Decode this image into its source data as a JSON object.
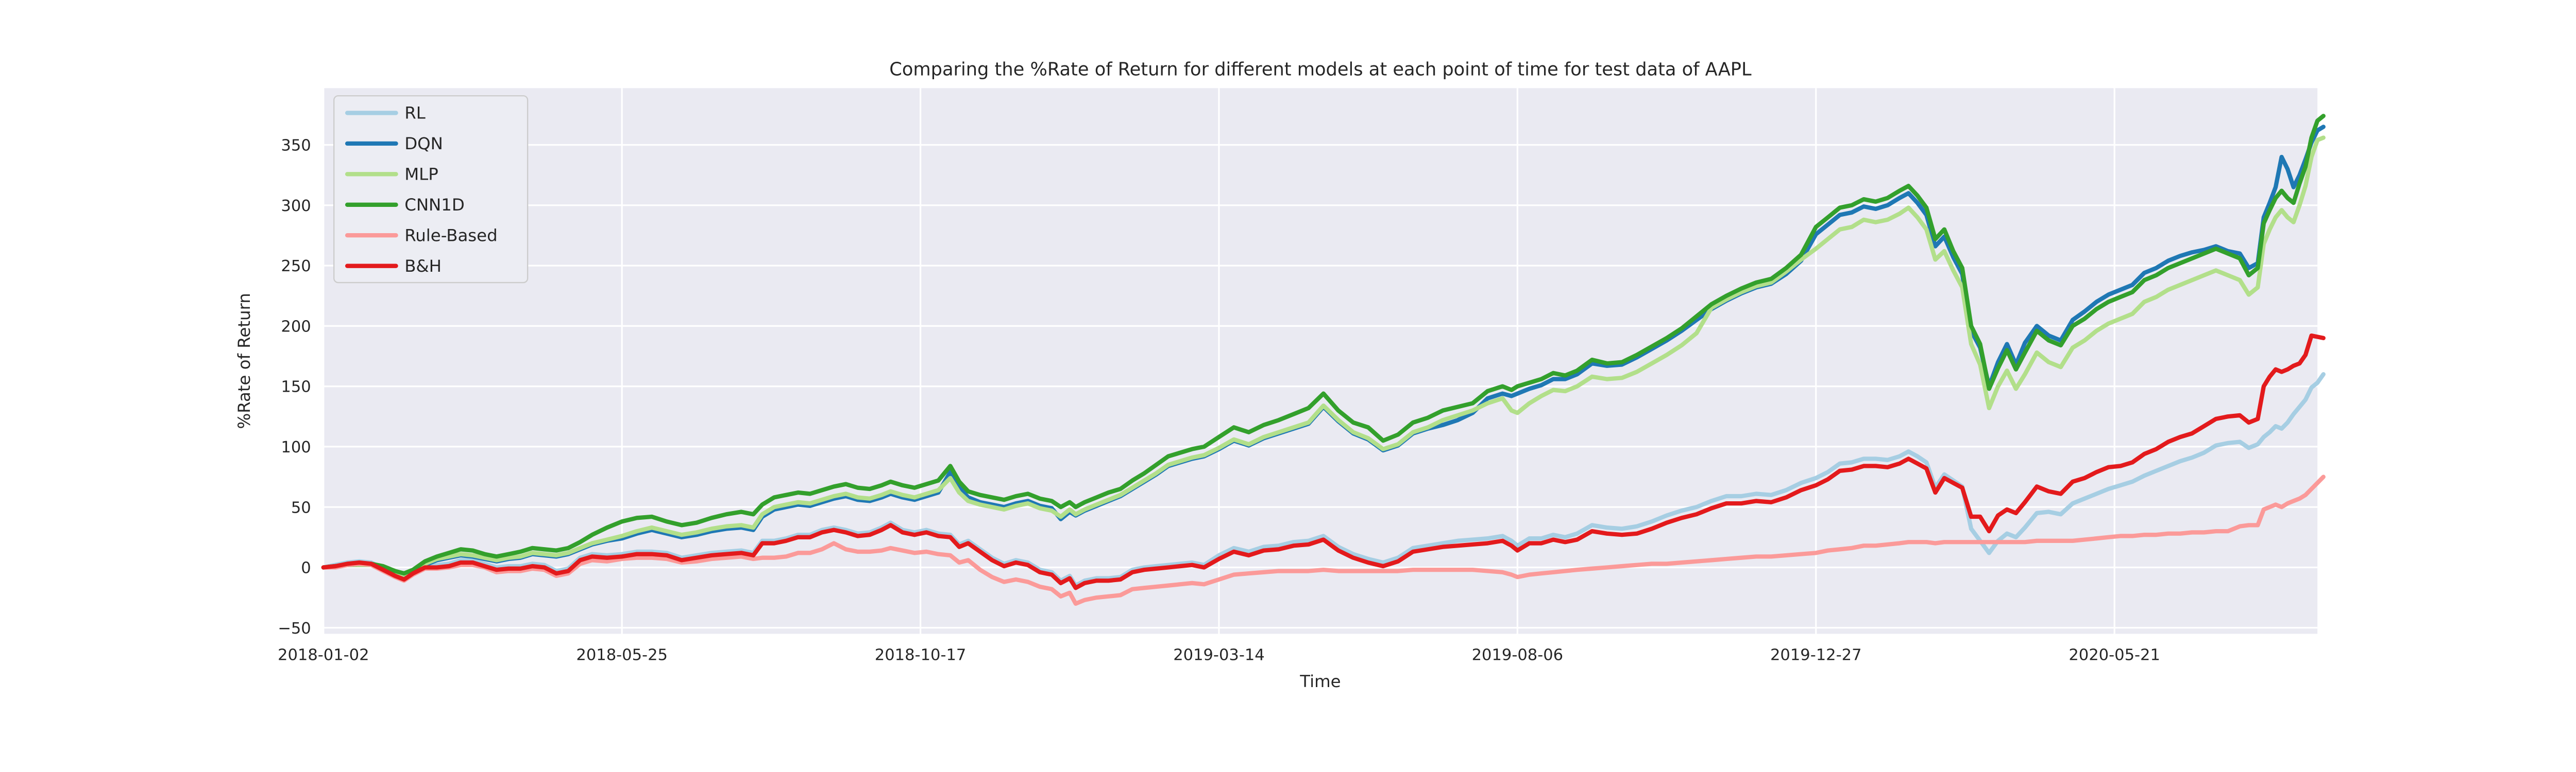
{
  "title": "Comparing the %Rate of Return for different models at each point of time for test data of AAPL",
  "axes": {
    "xlabel": "Time",
    "ylabel": "%Rate of Return",
    "x_tick_labels": [
      "2018-01-02",
      "2018-05-25",
      "2018-10-17",
      "2019-03-14",
      "2019-08-06",
      "2019-12-27",
      "2020-05-21"
    ],
    "x_tick_index": [
      0,
      100,
      200,
      300,
      400,
      500,
      600
    ],
    "y_ticks": [
      -50,
      0,
      50,
      100,
      150,
      200,
      250,
      300,
      350
    ],
    "xlim": [
      0,
      668
    ],
    "ylim": [
      -55,
      397
    ],
    "grid": true,
    "plot_bg": "#eaeaf2",
    "grid_color": "#ffffff",
    "text_color": "#262626"
  },
  "legend": {
    "position": "upper left",
    "bg": "#ecedf3",
    "border": "#cccccc",
    "entries": [
      {
        "label": "RL",
        "color": "#a6cee3"
      },
      {
        "label": "DQN",
        "color": "#1f78b4"
      },
      {
        "label": "MLP",
        "color": "#b2df8a"
      },
      {
        "label": "CNN1D",
        "color": "#33a02c"
      },
      {
        "label": "Rule-Based",
        "color": "#fb9a99"
      },
      {
        "label": "B&H",
        "color": "#e31a1c"
      }
    ]
  },
  "chart_data": {
    "type": "line",
    "title": "Comparing the %Rate of Return for different models at each point of time for test data of AAPL",
    "xlabel": "Time",
    "ylabel": "%Rate of Return",
    "x_unit": "trading-day index from 2018-01-02 (ticks every 100 sessions, data ends 2020-08-28)",
    "xlim": [
      0,
      668
    ],
    "ylim": [
      -55,
      397
    ],
    "legend_position": "upper left",
    "x": [
      0,
      4,
      8,
      12,
      16,
      20,
      24,
      27,
      30,
      34,
      38,
      42,
      46,
      50,
      54,
      58,
      62,
      66,
      70,
      74,
      78,
      82,
      86,
      90,
      95,
      100,
      105,
      110,
      115,
      120,
      125,
      130,
      135,
      140,
      144,
      147,
      151,
      155,
      159,
      163,
      167,
      171,
      175,
      179,
      183,
      187,
      190,
      194,
      198,
      202,
      206,
      210,
      213,
      216,
      220,
      224,
      228,
      232,
      236,
      240,
      244,
      247,
      250,
      252,
      255,
      259,
      263,
      267,
      271,
      275,
      279,
      283,
      287,
      291,
      295,
      300,
      305,
      310,
      315,
      320,
      325,
      330,
      335,
      340,
      345,
      350,
      355,
      360,
      365,
      370,
      375,
      380,
      385,
      390,
      395,
      398,
      400,
      404,
      408,
      412,
      416,
      420,
      425,
      430,
      435,
      440,
      445,
      450,
      455,
      460,
      465,
      470,
      475,
      480,
      485,
      490,
      495,
      500,
      504,
      508,
      512,
      516,
      520,
      524,
      528,
      531,
      534,
      537,
      540,
      543,
      546,
      549,
      552,
      555,
      558,
      561,
      564,
      567,
      570,
      574,
      578,
      582,
      586,
      590,
      594,
      598,
      602,
      606,
      610,
      614,
      618,
      622,
      626,
      630,
      634,
      638,
      642,
      645,
      648,
      650,
      652,
      654,
      656,
      658,
      660,
      662,
      664,
      666,
      668,
      670
    ],
    "series": [
      {
        "name": "RL",
        "color": "#a6cee3",
        "values": [
          0,
          2,
          4,
          5,
          4,
          -1,
          -6,
          -8,
          -4,
          1,
          2,
          3,
          6,
          6,
          3,
          0,
          1,
          1,
          3,
          2,
          -3,
          -1,
          8,
          11,
          10,
          11,
          13,
          13,
          12,
          8,
          10,
          12,
          13,
          14,
          12,
          22,
          22,
          24,
          27,
          27,
          31,
          33,
          31,
          28,
          29,
          33,
          37,
          31,
          29,
          31,
          28,
          27,
          19,
          22,
          15,
          8,
          3,
          6,
          4,
          -2,
          -4,
          -11,
          -7,
          -15,
          -11,
          -9,
          -9,
          -8,
          -2,
          0,
          1,
          2,
          3,
          4,
          2,
          10,
          16,
          13,
          17,
          18,
          21,
          22,
          26,
          17,
          11,
          7,
          4,
          8,
          16,
          18,
          20,
          22,
          23,
          24,
          26,
          22,
          18,
          24,
          24,
          27,
          25,
          28,
          35,
          33,
          32,
          34,
          38,
          43,
          47,
          50,
          55,
          59,
          59,
          61,
          60,
          64,
          70,
          74,
          79,
          86,
          87,
          90,
          90,
          89,
          92,
          96,
          92,
          87,
          66,
          77,
          72,
          67,
          32,
          22,
          12,
          22,
          28,
          25,
          33,
          45,
          46,
          44,
          53,
          57,
          61,
          65,
          68,
          71,
          76,
          80,
          84,
          88,
          91,
          95,
          101,
          103,
          104,
          99,
          102,
          108,
          112,
          117,
          115,
          120,
          127,
          133,
          139,
          149,
          153,
          160
        ]
      },
      {
        "name": "DQN",
        "color": "#1f78b4",
        "values": [
          0,
          1,
          2,
          2,
          2,
          0,
          -4,
          -6,
          -3,
          2,
          6,
          8,
          10,
          9,
          7,
          5,
          7,
          8,
          11,
          10,
          9,
          11,
          15,
          19,
          22,
          24,
          28,
          31,
          28,
          25,
          27,
          30,
          32,
          33,
          31,
          42,
          48,
          50,
          52,
          51,
          54,
          57,
          59,
          56,
          55,
          58,
          61,
          58,
          56,
          59,
          62,
          79,
          66,
          58,
          54,
          52,
          50,
          53,
          55,
          51,
          49,
          40,
          46,
          43,
          47,
          51,
          55,
          59,
          65,
          71,
          77,
          84,
          87,
          90,
          92,
          98,
          105,
          101,
          107,
          111,
          115,
          119,
          133,
          121,
          111,
          106,
          97,
          101,
          111,
          115,
          118,
          122,
          128,
          140,
          144,
          142,
          144,
          148,
          151,
          156,
          156,
          160,
          169,
          167,
          168,
          174,
          181,
          188,
          196,
          205,
          214,
          221,
          227,
          232,
          235,
          243,
          254,
          276,
          284,
          292,
          294,
          299,
          297,
          300,
          306,
          310,
          302,
          292,
          266,
          274,
          257,
          243,
          196,
          182,
          150,
          170,
          185,
          168,
          186,
          200,
          192,
          188,
          205,
          212,
          220,
          226,
          230,
          234,
          244,
          248,
          254,
          258,
          261,
          263,
          266,
          262,
          260,
          248,
          252,
          290,
          302,
          315,
          340,
          330,
          315,
          325,
          338,
          352,
          362,
          365
        ]
      },
      {
        "name": "MLP",
        "color": "#b2df8a",
        "values": [
          0,
          1,
          2,
          2,
          2,
          0,
          -4,
          -6,
          -3,
          3,
          7,
          9,
          11,
          10,
          8,
          6,
          8,
          9,
          12,
          11,
          10,
          12,
          16,
          20,
          23,
          26,
          30,
          33,
          30,
          27,
          29,
          32,
          34,
          35,
          33,
          44,
          50,
          52,
          54,
          53,
          56,
          59,
          61,
          58,
          57,
          60,
          63,
          60,
          58,
          61,
          64,
          74,
          62,
          55,
          52,
          50,
          48,
          51,
          53,
          49,
          47,
          42,
          48,
          44,
          48,
          52,
          56,
          60,
          66,
          72,
          78,
          85,
          88,
          91,
          93,
          99,
          106,
          102,
          108,
          112,
          116,
          120,
          134,
          122,
          112,
          107,
          98,
          102,
          112,
          116,
          122,
          126,
          130,
          136,
          140,
          130,
          128,
          136,
          142,
          147,
          146,
          150,
          158,
          156,
          157,
          162,
          169,
          176,
          184,
          194,
          215,
          222,
          228,
          233,
          236,
          245,
          255,
          264,
          272,
          280,
          282,
          288,
          286,
          288,
          293,
          298,
          290,
          280,
          255,
          262,
          246,
          232,
          185,
          168,
          132,
          150,
          163,
          148,
          160,
          178,
          170,
          166,
          182,
          188,
          196,
          202,
          206,
          210,
          220,
          224,
          230,
          234,
          238,
          242,
          246,
          242,
          238,
          226,
          232,
          268,
          280,
          290,
          296,
          290,
          286,
          300,
          316,
          340,
          354,
          356
        ]
      },
      {
        "name": "CNN1D",
        "color": "#33a02c",
        "values": [
          0,
          1,
          2,
          3,
          3,
          1,
          -3,
          -5,
          -2,
          5,
          9,
          12,
          15,
          14,
          11,
          9,
          11,
          13,
          16,
          15,
          14,
          16,
          21,
          27,
          33,
          38,
          41,
          42,
          38,
          35,
          37,
          41,
          44,
          46,
          44,
          52,
          58,
          60,
          62,
          61,
          64,
          67,
          69,
          66,
          65,
          68,
          71,
          68,
          66,
          69,
          72,
          84,
          71,
          63,
          60,
          58,
          56,
          59,
          61,
          57,
          55,
          50,
          54,
          50,
          54,
          58,
          62,
          65,
          72,
          78,
          85,
          92,
          95,
          98,
          100,
          108,
          116,
          112,
          118,
          122,
          127,
          132,
          144,
          130,
          120,
          116,
          105,
          110,
          120,
          124,
          130,
          133,
          136,
          146,
          150,
          147,
          150,
          153,
          156,
          161,
          159,
          163,
          172,
          169,
          170,
          176,
          183,
          190,
          198,
          208,
          218,
          225,
          231,
          236,
          239,
          248,
          259,
          282,
          290,
          298,
          300,
          305,
          303,
          306,
          312,
          316,
          308,
          298,
          272,
          280,
          262,
          248,
          200,
          185,
          148,
          165,
          180,
          164,
          178,
          196,
          188,
          184,
          200,
          206,
          214,
          220,
          224,
          228,
          238,
          242,
          248,
          252,
          256,
          260,
          264,
          260,
          256,
          242,
          248,
          285,
          296,
          306,
          312,
          306,
          302,
          318,
          332,
          356,
          370,
          374
        ]
      },
      {
        "name": "Rule-Based",
        "color": "#fb9a99",
        "values": [
          0,
          0,
          2,
          3,
          2,
          -3,
          -8,
          -11,
          -6,
          -1,
          -1,
          0,
          2,
          2,
          0,
          -4,
          -3,
          -3,
          -1,
          -2,
          -7,
          -5,
          3,
          6,
          5,
          7,
          8,
          8,
          7,
          4,
          5,
          7,
          8,
          9,
          7,
          8,
          8,
          9,
          12,
          12,
          15,
          20,
          15,
          13,
          13,
          14,
          16,
          14,
          12,
          13,
          11,
          10,
          4,
          6,
          -2,
          -8,
          -12,
          -10,
          -12,
          -16,
          -18,
          -24,
          -21,
          -30,
          -27,
          -25,
          -24,
          -23,
          -18,
          -17,
          -16,
          -15,
          -14,
          -13,
          -14,
          -10,
          -6,
          -5,
          -4,
          -3,
          -3,
          -3,
          -2,
          -3,
          -3,
          -3,
          -3,
          -3,
          -2,
          -2,
          -2,
          -2,
          -2,
          -3,
          -4,
          -6,
          -8,
          -6,
          -5,
          -4,
          -3,
          -2,
          -1,
          0,
          1,
          2,
          3,
          3,
          4,
          5,
          6,
          7,
          8,
          9,
          9,
          10,
          11,
          12,
          14,
          15,
          16,
          18,
          18,
          19,
          20,
          21,
          21,
          21,
          20,
          21,
          21,
          21,
          21,
          21,
          21,
          21,
          21,
          21,
          21,
          22,
          22,
          22,
          22,
          23,
          24,
          25,
          26,
          26,
          27,
          27,
          28,
          28,
          29,
          29,
          30,
          30,
          34,
          35,
          35,
          48,
          50,
          52,
          50,
          53,
          55,
          57,
          60,
          65,
          70,
          75
        ]
      },
      {
        "name": "B&H",
        "color": "#e31a1c",
        "values": [
          0,
          1,
          3,
          4,
          3,
          -2,
          -7,
          -10,
          -5,
          0,
          0,
          1,
          4,
          4,
          1,
          -2,
          -1,
          -1,
          1,
          0,
          -5,
          -3,
          6,
          9,
          8,
          9,
          11,
          11,
          10,
          6,
          8,
          10,
          11,
          12,
          10,
          20,
          20,
          22,
          25,
          25,
          29,
          31,
          29,
          26,
          27,
          31,
          35,
          29,
          27,
          29,
          26,
          25,
          17,
          20,
          13,
          6,
          1,
          4,
          2,
          -4,
          -6,
          -13,
          -9,
          -17,
          -13,
          -11,
          -11,
          -10,
          -4,
          -2,
          -1,
          0,
          1,
          2,
          0,
          7,
          13,
          10,
          14,
          15,
          18,
          19,
          23,
          14,
          8,
          4,
          1,
          5,
          13,
          15,
          17,
          18,
          19,
          20,
          22,
          18,
          14,
          20,
          20,
          23,
          21,
          23,
          30,
          28,
          27,
          28,
          32,
          37,
          41,
          44,
          49,
          53,
          53,
          55,
          54,
          58,
          64,
          68,
          73,
          80,
          81,
          84,
          84,
          83,
          86,
          90,
          86,
          82,
          62,
          74,
          70,
          66,
          42,
          42,
          30,
          43,
          48,
          45,
          54,
          67,
          63,
          61,
          71,
          74,
          79,
          83,
          84,
          87,
          94,
          98,
          104,
          108,
          111,
          117,
          123,
          125,
          126,
          120,
          123,
          150,
          158,
          164,
          162,
          164,
          167,
          169,
          176,
          192,
          191,
          190
        ]
      }
    ]
  },
  "style": {
    "figure_bg": "#ffffff",
    "line_width": 9,
    "grid_width": 3.5,
    "title_font": 38,
    "label_font": 35,
    "tick_font": 33,
    "legend_font": 35
  }
}
